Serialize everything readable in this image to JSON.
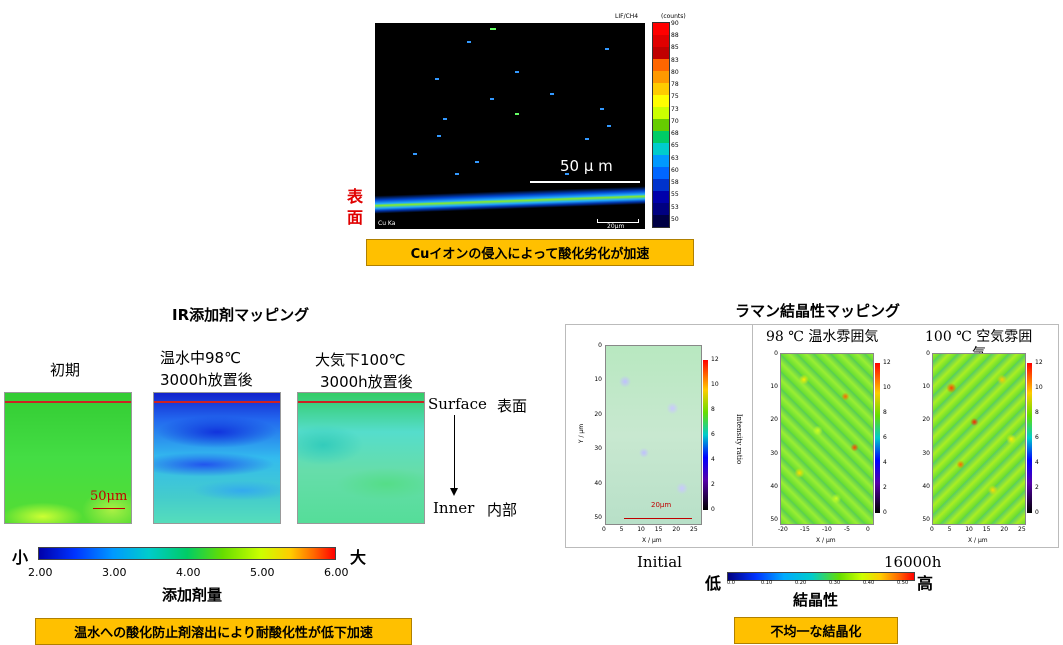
{
  "cu_section": {
    "top_right_label": "LIF/CH4",
    "scale_unit": "(counts)",
    "scale_values": [
      "90",
      "88",
      "85",
      "83",
      "80",
      "78",
      "75",
      "73",
      "70",
      "68",
      "65",
      "63",
      "60",
      "58",
      "55",
      "53",
      "50"
    ],
    "scale_colors": [
      "#ff0000",
      "#e00000",
      "#c00000",
      "#ff6600",
      "#ff9900",
      "#ffcc00",
      "#ffff00",
      "#ccff00",
      "#66cc00",
      "#00cc66",
      "#00cccc",
      "#0099ff",
      "#0066ff",
      "#0033cc",
      "#0000aa",
      "#000080",
      "#000044"
    ],
    "scalebar_label": "50 μ m",
    "bottom_left_label": "Cu Ka",
    "bottom_scale_label": "20μm",
    "surface_label_1": "表",
    "surface_label_2": "面",
    "caption": "Cuイオンの侵入によって酸化劣化が加速"
  },
  "ir_section": {
    "title": "IR添加剤マッピング",
    "map_labels": {
      "initial": "初期",
      "hot_water_1": "温水中98℃",
      "hot_water_2": "3000h放置後",
      "air_1": "大気下100℃",
      "air_2": "3000h放置後"
    },
    "scale_mark": "50μm",
    "surface_en": "Surface",
    "surface_jp": "表面",
    "inner_en": "Inner",
    "inner_jp": "内部",
    "scale_small": "小",
    "scale_large": "大",
    "scale_ticks": [
      "2.00",
      "3.00",
      "4.00",
      "5.00",
      "6.00"
    ],
    "scale_title": "添加剤量",
    "caption": "温水への酸化防止剤溶出により耐酸化性が低下加速"
  },
  "raman_section": {
    "title": "ラマン結晶性マッピング",
    "label_98": "98 ℃ 温水雰囲気",
    "label_100_1": "100 ℃ 空気雰囲",
    "label_100_2": "気",
    "y_axis": "Y / μm",
    "x_axis": "X / μm",
    "intensity_label": "Intensity ratio",
    "y_ticks": [
      "0",
      "10",
      "20",
      "30",
      "40",
      "50"
    ],
    "x_ticks": [
      "0",
      "5",
      "10",
      "15",
      "20",
      "25"
    ],
    "x_ticks_neg": [
      "-20",
      "-15",
      "-10",
      "-5",
      "0"
    ],
    "colorbar_ticks": [
      "12",
      "10",
      "8",
      "6",
      "4",
      "2",
      "0"
    ],
    "scale_mark": "20μm",
    "initial_label": "Initial",
    "hours_label": "16000h",
    "scale_low": "低",
    "scale_high": "高",
    "scale_ticks": [
      "0.0",
      "0.10",
      "0.20",
      "0.30",
      "0.40",
      "0.50"
    ],
    "scale_title": "結晶性",
    "caption": "不均一な結晶化"
  }
}
